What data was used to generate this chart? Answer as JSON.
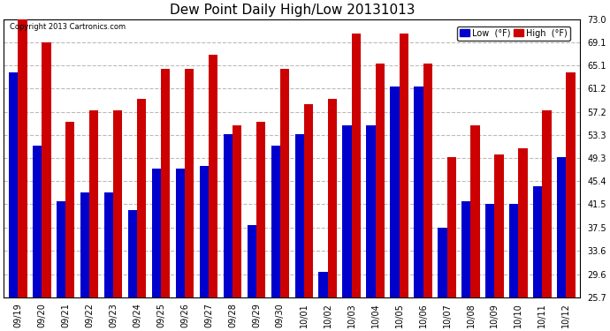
{
  "title": "Dew Point Daily High/Low 20131013",
  "copyright": "Copyright 2013 Cartronics.com",
  "dates": [
    "09/19",
    "09/20",
    "09/21",
    "09/22",
    "09/23",
    "09/24",
    "09/25",
    "09/26",
    "09/27",
    "09/28",
    "09/29",
    "09/30",
    "10/01",
    "10/02",
    "10/03",
    "10/04",
    "10/05",
    "10/06",
    "10/07",
    "10/08",
    "10/09",
    "10/10",
    "10/11",
    "10/12"
  ],
  "low_values": [
    64.0,
    51.5,
    42.0,
    43.5,
    43.5,
    40.5,
    47.5,
    47.5,
    48.0,
    53.5,
    38.0,
    51.5,
    53.5,
    30.0,
    55.0,
    55.0,
    61.5,
    61.5,
    37.5,
    42.0,
    41.5,
    41.5,
    44.5,
    49.5
  ],
  "high_values": [
    73.0,
    69.0,
    55.5,
    57.5,
    57.5,
    59.5,
    64.5,
    64.5,
    67.0,
    55.0,
    55.5,
    64.5,
    58.5,
    59.5,
    70.5,
    65.5,
    70.5,
    65.5,
    49.5,
    55.0,
    50.0,
    51.0,
    57.5,
    64.0
  ],
  "ylim_min": 25.7,
  "ylim_max": 73.0,
  "yticks": [
    25.7,
    29.6,
    33.6,
    37.5,
    41.5,
    45.4,
    49.3,
    53.3,
    57.2,
    61.2,
    65.1,
    69.1,
    73.0
  ],
  "bar_width": 0.38,
  "low_color": "#0000cc",
  "high_color": "#cc0000",
  "bg_color": "#ffffff",
  "plot_bg_color": "#ffffff",
  "grid_color": "#bbbbbb",
  "title_fontsize": 11,
  "tick_fontsize": 7,
  "legend_low_label": "Low  (°F)",
  "legend_high_label": "High  (°F)"
}
